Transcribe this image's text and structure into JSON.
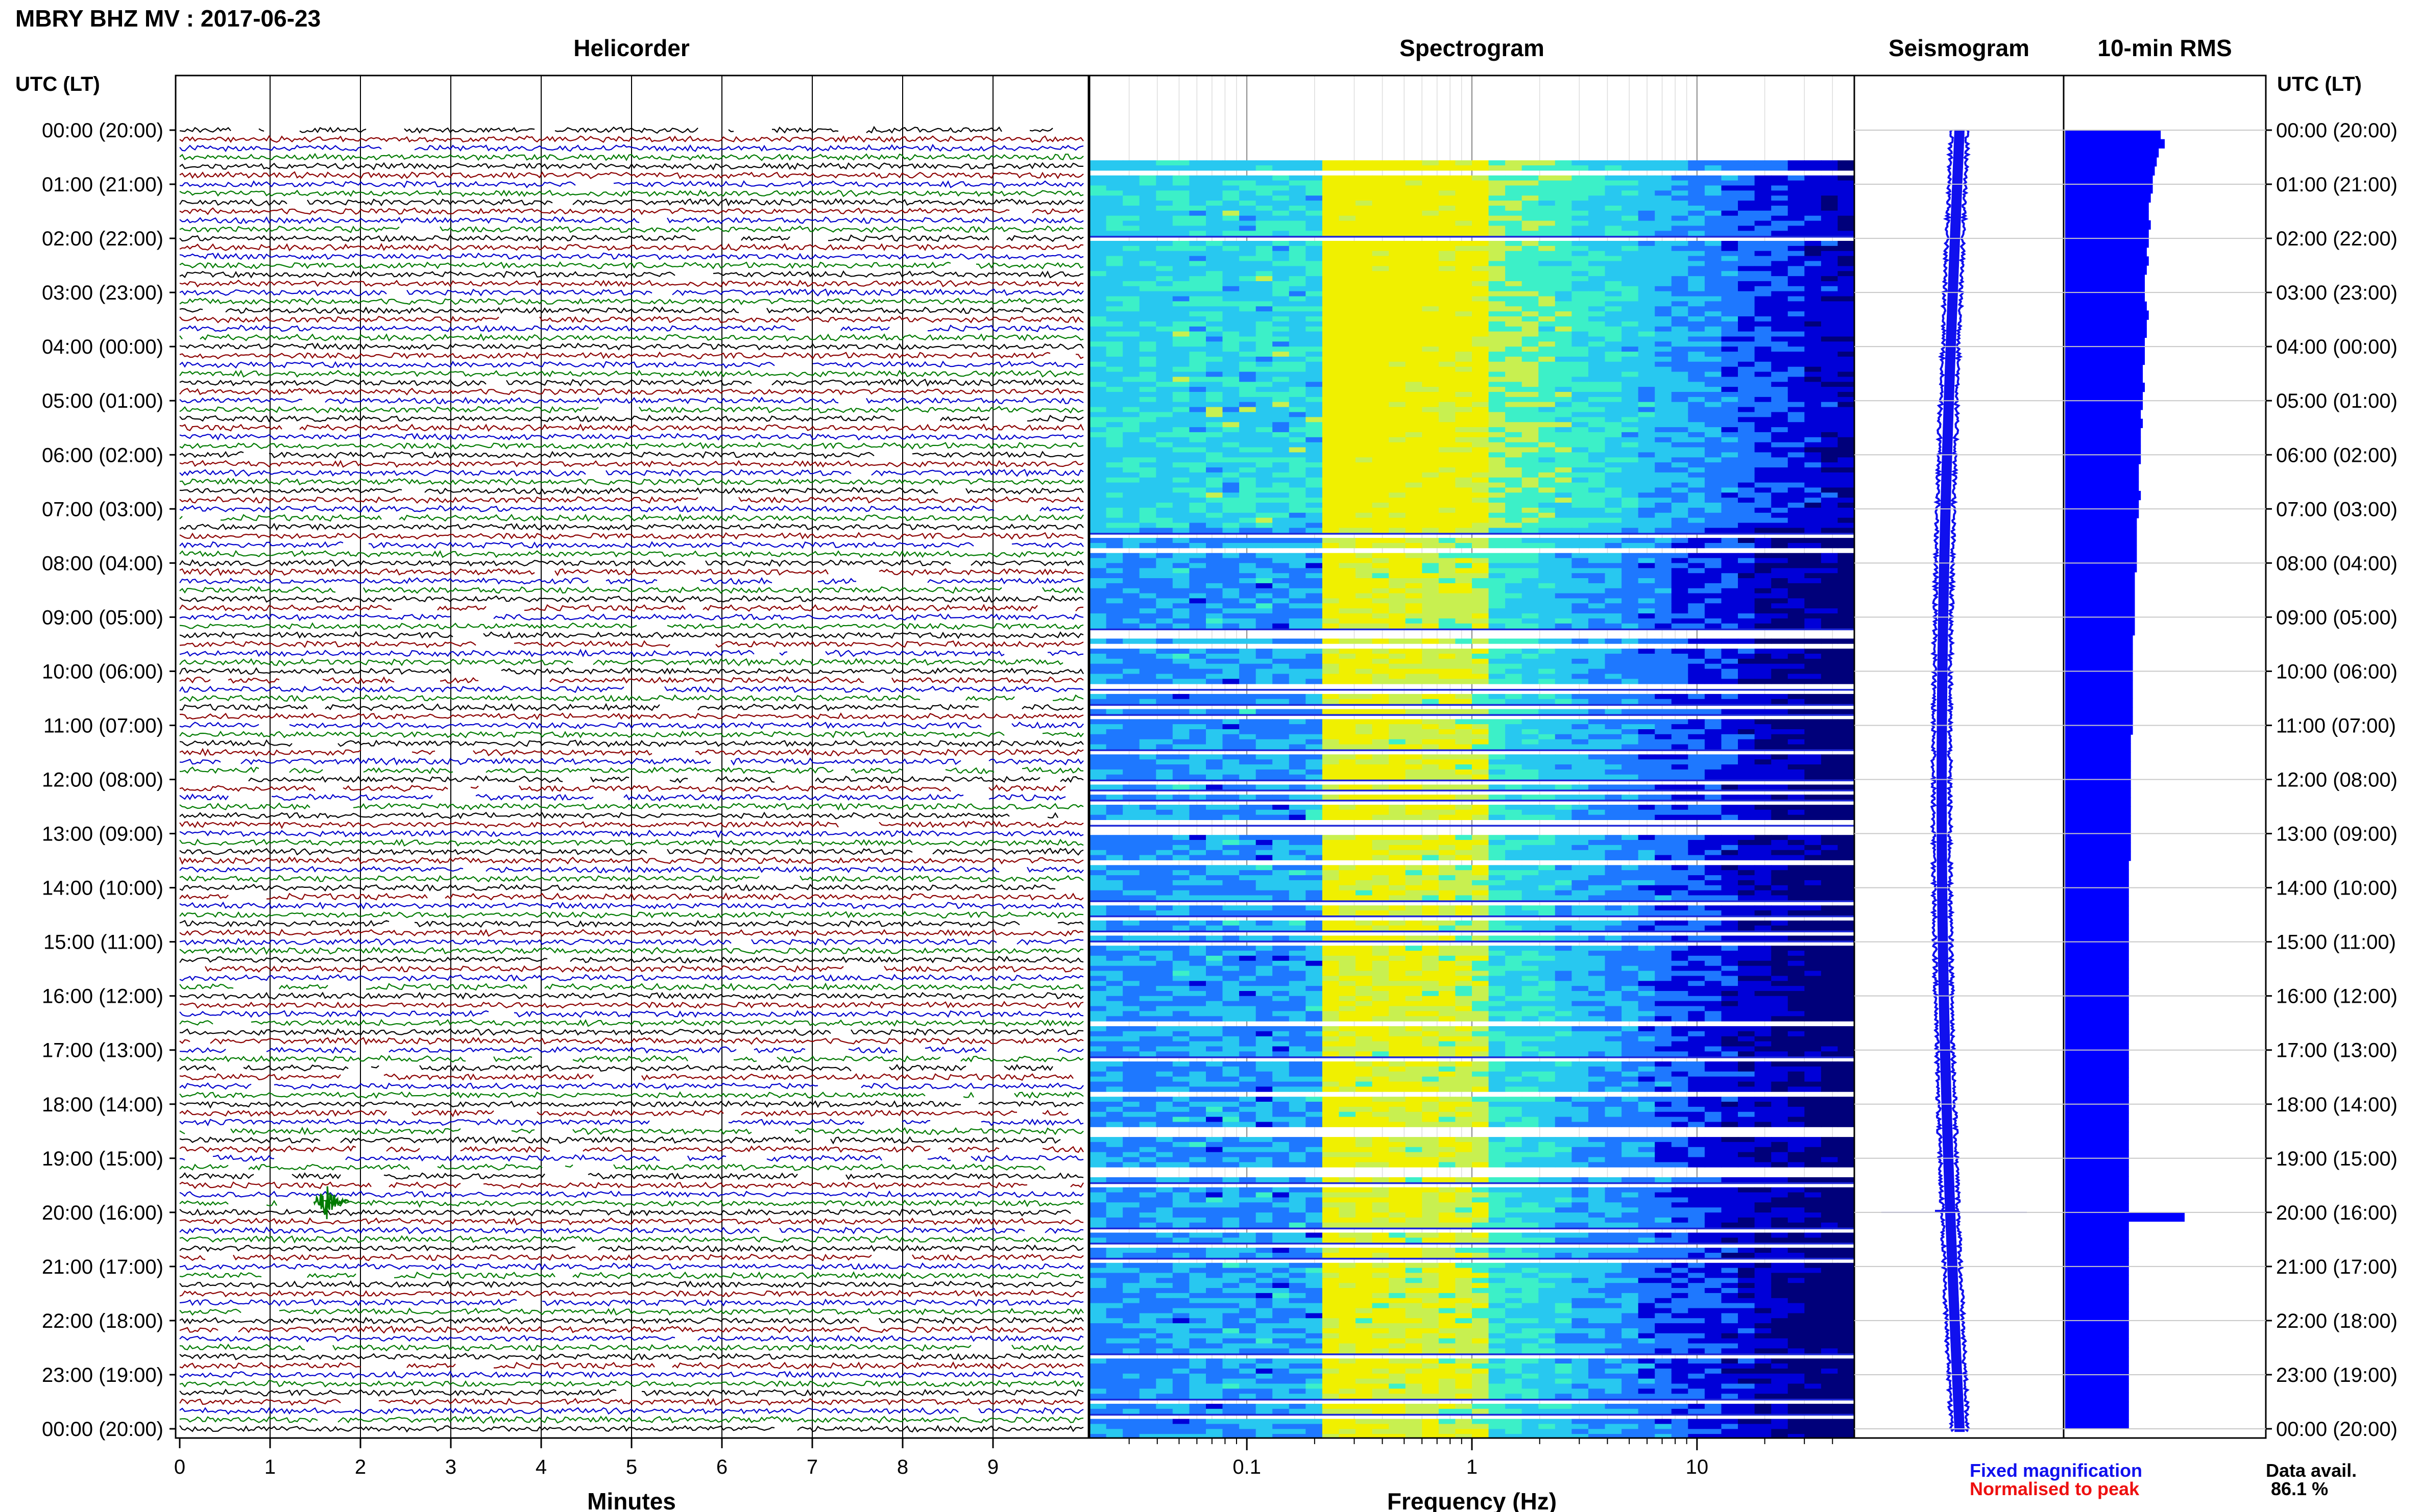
{
  "header": {
    "title": "MBRY BHZ MV : 2017-06-23",
    "utc_label_left": "UTC (LT)",
    "utc_label_right": "UTC (LT)"
  },
  "panels": {
    "helicorder": "Helicorder",
    "spectrogram": "Spectrogram",
    "seismogram": "Seismogram",
    "rms": "10-min RMS"
  },
  "axes": {
    "minutes_label": "Minutes",
    "frequency_label": "Frequency (Hz)",
    "minute_ticks": [
      "0",
      "1",
      "2",
      "3",
      "4",
      "5",
      "6",
      "7",
      "8",
      "9"
    ],
    "freq_ticks": [
      "0.1",
      "1",
      "10"
    ]
  },
  "time_labels": [
    "00:00 (20:00)",
    "01:00 (21:00)",
    "02:00 (22:00)",
    "03:00 (23:00)",
    "04:00 (00:00)",
    "05:00 (01:00)",
    "06:00 (02:00)",
    "07:00 (03:00)",
    "08:00 (04:00)",
    "09:00 (05:00)",
    "10:00 (06:00)",
    "11:00 (07:00)",
    "12:00 (08:00)",
    "13:00 (09:00)",
    "14:00 (10:00)",
    "15:00 (11:00)",
    "16:00 (12:00)",
    "17:00 (13:00)",
    "18:00 (14:00)",
    "19:00 (15:00)",
    "20:00 (16:00)",
    "21:00 (17:00)",
    "22:00 (18:00)",
    "23:00 (19:00)",
    "00:00 (20:00)"
  ],
  "legend": {
    "fixed": "Fixed magnification",
    "normalised": "Normalised to peak",
    "data_avail_label": "Data avail.",
    "data_avail_value": "86.1 %"
  },
  "colors": {
    "fixed": "#1010ee",
    "normalised": "#ee1010",
    "trace_cycle": [
      "#000000",
      "#8b0000",
      "#0000cc",
      "#007a00"
    ],
    "spectrogram_scale": [
      "#00007a",
      "#0000d8",
      "#1e78ff",
      "#28c8f0",
      "#3cf0c8",
      "#c8f050",
      "#f0f000"
    ],
    "seismogram": "#1010ee",
    "rms_bars": "#0000ff"
  },
  "chart_data": {
    "type": "heatmap",
    "date": "2017-06-23",
    "station": "MBRY BHZ MV",
    "minutes_range": [
      0,
      10
    ],
    "frequency_range_hz": [
      0.02,
      50
    ],
    "frequency_scale": "log",
    "hours_utc": [
      0,
      1,
      2,
      3,
      4,
      5,
      6,
      7,
      8,
      9,
      10,
      11,
      12,
      13,
      14,
      15,
      16,
      17,
      18,
      19,
      20,
      21,
      22,
      23,
      24
    ],
    "rms_10min_relative": [
      0.48,
      0.5,
      0.47,
      0.46,
      0.45,
      0.44,
      0.44,
      0.43,
      0.42,
      0.42,
      0.43,
      0.42,
      0.42,
      0.41,
      0.42,
      0.41,
      0.4,
      0.4,
      0.4,
      0.41,
      0.42,
      0.41,
      0.41,
      0.4,
      0.4,
      0.4,
      0.39,
      0.39,
      0.4,
      0.39,
      0.39,
      0.38,
      0.39,
      0.38,
      0.38,
      0.38,
      0.38,
      0.37,
      0.37,
      0.37,
      0.38,
      0.37,
      0.37,
      0.36,
      0.36,
      0.36,
      0.36,
      0.36,
      0.36,
      0.35,
      0.35,
      0.35,
      0.35,
      0.35,
      0.35,
      0.35,
      0.34,
      0.34,
      0.34,
      0.34,
      0.34,
      0.34,
      0.34,
      0.34,
      0.34,
      0.34,
      0.34,
      0.33,
      0.33,
      0.33,
      0.33,
      0.33,
      0.33,
      0.33,
      0.33,
      0.33,
      0.33,
      0.33,
      0.33,
      0.33,
      0.33,
      0.32,
      0.32,
      0.32,
      0.32,
      0.32,
      0.32,
      0.32,
      0.32,
      0.32,
      0.32,
      0.32,
      0.32,
      0.32,
      0.32,
      0.32,
      0.32,
      0.32,
      0.32,
      0.32,
      0.32,
      0.32,
      0.32,
      0.32,
      0.32,
      0.32,
      0.32,
      0.32,
      0.32,
      0.32,
      0.32,
      0.32,
      0.32,
      0.32,
      0.32,
      0.32,
      0.32,
      0.32,
      0.32,
      0.32,
      0.6,
      0.32,
      0.32,
      0.32,
      0.32,
      0.32,
      0.32,
      0.32,
      0.32,
      0.32,
      0.32,
      0.32,
      0.32,
      0.32,
      0.32,
      0.32,
      0.32,
      0.32,
      0.32,
      0.32,
      0.32,
      0.32,
      0.32,
      0.32
    ],
    "data_availability_percent": 86.1
  }
}
